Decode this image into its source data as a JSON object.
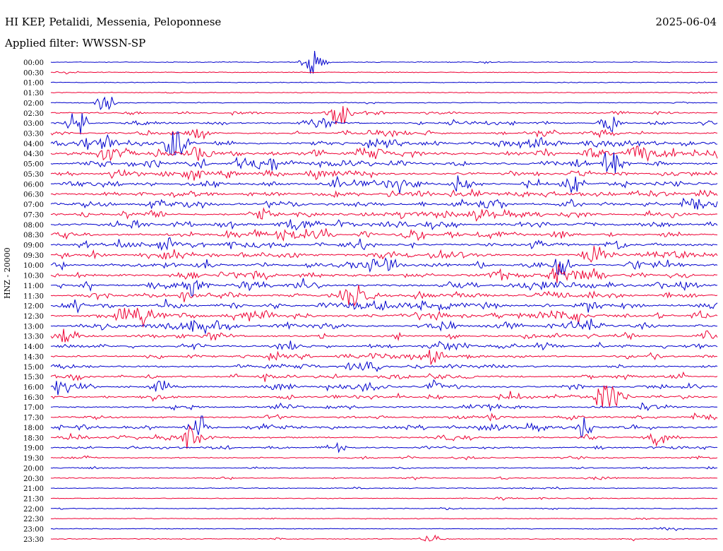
{
  "header": {
    "station": "HI KEP, Petalidi, Messenia, Peloponnese",
    "date": "2025-06-04",
    "filter": "Applied filter: WWSSN-SP"
  },
  "chart_data": {
    "type": "line",
    "title": "HI KEP, Petalidi, Messenia, Peloponnese",
    "ylabel": "HNZ - 20000",
    "colors": [
      "#0000cc",
      "#ee0033"
    ],
    "rows": [
      "00:00",
      "00:30",
      "01:00",
      "01:30",
      "02:00",
      "02:30",
      "03:00",
      "03:30",
      "04:00",
      "04:30",
      "05:00",
      "05:30",
      "06:00",
      "06:30",
      "07:00",
      "07:30",
      "08:00",
      "08:30",
      "09:00",
      "09:30",
      "10:00",
      "10:30",
      "11:00",
      "11:30",
      "12:00",
      "12:30",
      "13:00",
      "13:30",
      "14:00",
      "14:30",
      "15:00",
      "15:30",
      "16:00",
      "16:30",
      "17:00",
      "17:30",
      "18:00",
      "18:30",
      "19:00",
      "19:30",
      "20:00",
      "20:30",
      "21:00",
      "21:30",
      "22:00",
      "22:30",
      "23:00",
      "23:30"
    ],
    "activity": [
      0.02,
      0.02,
      0.02,
      0.03,
      0.04,
      0.2,
      0.35,
      0.45,
      0.6,
      0.7,
      0.65,
      0.6,
      0.6,
      0.6,
      0.6,
      0.55,
      0.55,
      0.6,
      0.55,
      0.6,
      0.6,
      0.6,
      0.6,
      0.6,
      0.6,
      0.65,
      0.55,
      0.45,
      0.45,
      0.4,
      0.4,
      0.4,
      0.45,
      0.4,
      0.35,
      0.35,
      0.4,
      0.35,
      0.3,
      0.15,
      0.1,
      0.1,
      0.06,
      0.05,
      0.05,
      0.04,
      0.03,
      0.04
    ],
    "events": [
      {
        "row": 0,
        "minute": 11.8,
        "amp": 1.6
      },
      {
        "row": 4,
        "minute": 2.5,
        "amp": 0.6
      },
      {
        "row": 5,
        "minute": 12.9,
        "amp": 0.9
      },
      {
        "row": 6,
        "minute": 1.2,
        "amp": 0.9
      },
      {
        "row": 6,
        "minute": 25.2,
        "amp": 0.8
      },
      {
        "row": 8,
        "minute": 5.6,
        "amp": 1.8
      },
      {
        "row": 8,
        "minute": 2.5,
        "amp": 0.8
      },
      {
        "row": 9,
        "minute": 26.4,
        "amp": 0.8
      },
      {
        "row": 10,
        "minute": 25.2,
        "amp": 0.9
      },
      {
        "row": 12,
        "minute": 18.4,
        "amp": 0.6
      },
      {
        "row": 19,
        "minute": 24.4,
        "amp": 0.7
      },
      {
        "row": 20,
        "minute": 23.0,
        "amp": 0.9
      },
      {
        "row": 21,
        "minute": 22.9,
        "amp": 0.8
      },
      {
        "row": 22,
        "minute": 6.3,
        "amp": 0.9
      },
      {
        "row": 23,
        "minute": 13.6,
        "amp": 0.7
      },
      {
        "row": 25,
        "minute": 4.3,
        "amp": 0.6
      },
      {
        "row": 26,
        "minute": 7.3,
        "amp": 0.6
      },
      {
        "row": 32,
        "minute": 0.3,
        "amp": 0.5
      },
      {
        "row": 33,
        "minute": 25.0,
        "amp": 1.5
      },
      {
        "row": 36,
        "minute": 6.7,
        "amp": 1.6
      },
      {
        "row": 36,
        "minute": 24.0,
        "amp": 0.8
      },
      {
        "row": 37,
        "minute": 6.3,
        "amp": 0.7
      },
      {
        "row": 47,
        "minute": 17.2,
        "amp": 0.4
      }
    ]
  }
}
